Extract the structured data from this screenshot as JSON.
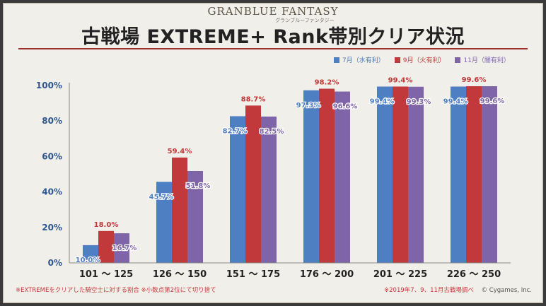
{
  "logo": {
    "main": "GRANBLUE FANTASY",
    "sub": "グランブルーファンタジー"
  },
  "header": {
    "title": "古戦場  EXTREME+  Rank帯別クリア状況"
  },
  "chart_data": {
    "type": "bar",
    "title": "古戦場  EXTREME+  Rank帯別クリア状況",
    "categories": [
      "101 ～ 125",
      "126 ～ 150",
      "151 ～ 175",
      "176 ～ 200",
      "201 ～ 225",
      "226 ～ 250"
    ],
    "series": [
      {
        "name": "7月（水有利）",
        "color": "#4f7fc3",
        "values": [
          10.0,
          45.7,
          82.7,
          97.3,
          99.4,
          99.4
        ]
      },
      {
        "name": "9月（火有利）",
        "color": "#c1393a",
        "values": [
          18.0,
          59.4,
          88.7,
          98.2,
          99.4,
          99.6
        ]
      },
      {
        "name": "11月（闇有利）",
        "color": "#7f65a8",
        "values": [
          16.7,
          51.8,
          82.5,
          96.6,
          99.3,
          99.6
        ]
      }
    ],
    "yticks": [
      "0%",
      "20%",
      "40%",
      "60%",
      "80%",
      "100%"
    ],
    "ylim": [
      0,
      100
    ],
    "xlabel": "",
    "ylabel": "",
    "grid": false,
    "legend": "top-right"
  },
  "legend": {
    "s0": "7月（水有利）",
    "s1": "9月（火有利）",
    "s2": "11月（闇有利）",
    "c0": "#4f7fc3",
    "c1": "#c1393a",
    "c2": "#7f65a8"
  },
  "footer": {
    "note_left": "※EXTREMEをクリアした騎空士に対する割合  ※小数点第2位にて切り捨て",
    "note_right": "※2019年7、9、11月古戦場調べ",
    "copyright": "© Cygames, Inc."
  }
}
